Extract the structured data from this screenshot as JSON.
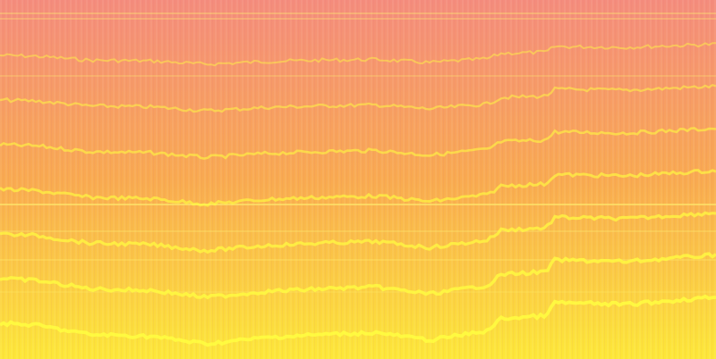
{
  "image": {
    "kind": "spectrogram",
    "colors": {
      "top": "#f48c7c",
      "middle": "#f9aa50",
      "bottom": "#fde838",
      "harmonic": "#ffff40",
      "band": "#fff070"
    },
    "harmonic_count": 7
  }
}
